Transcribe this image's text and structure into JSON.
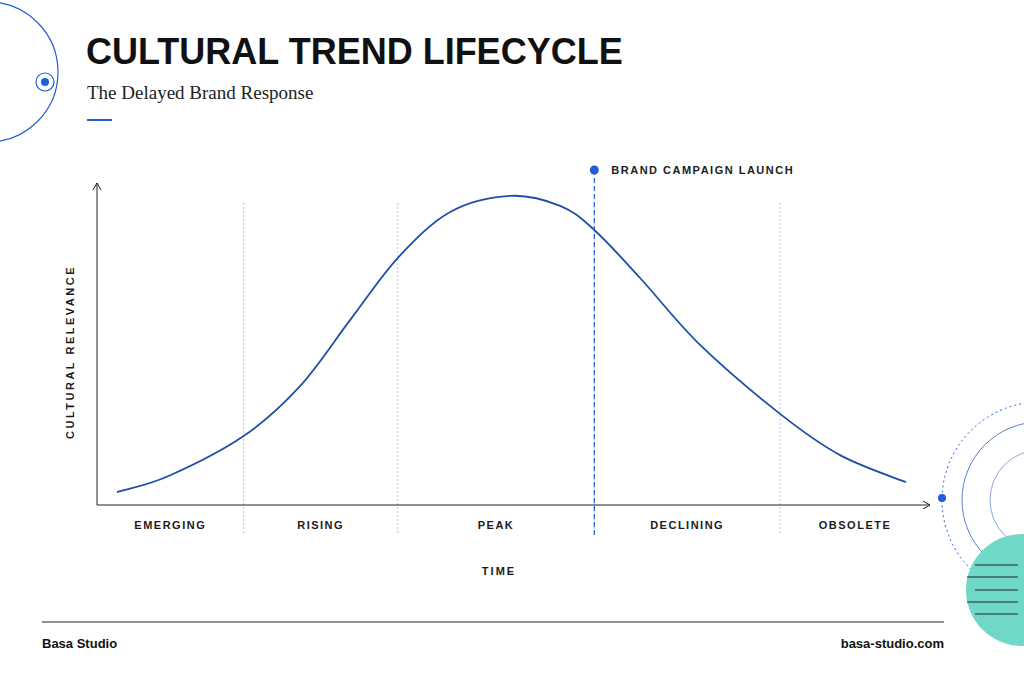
{
  "chart_data": {
    "type": "line",
    "title": "CULTURAL TREND LIFECYCLE",
    "subtitle": "The Delayed Brand Response",
    "y_label": "CULTURAL RELEVANCE",
    "x_label": "TIME",
    "color": "#1f4fa8",
    "xlim": [
      0,
      100
    ],
    "ylim": [
      0,
      100
    ],
    "tick_labels": false,
    "x": [
      2.4,
      8.6,
      17.6,
      24.4,
      30.4,
      36.1,
      42.4,
      49.6,
      55.6,
      59.7,
      65.2,
      72.4,
      82.0,
      89.2,
      97.1
    ],
    "values": [
      4.0,
      9.0,
      21.4,
      37.0,
      57.5,
      76.7,
      91.0,
      96.0,
      92.9,
      85.4,
      70.5,
      49.7,
      28.3,
      15.5,
      7.1
    ],
    "phases": [
      "EMERGING",
      "RISING",
      "PEAK",
      "DECLINING",
      "OBSOLETE"
    ],
    "phase_edges": [
      0,
      17.6,
      36.1,
      59.7,
      82.0,
      100
    ],
    "annotations": [
      {
        "text": "BRAND CAMPAIGN LAUNCH",
        "x": 59.7
      }
    ]
  },
  "footer": {
    "left": "Basa Studio",
    "right": "basa-studio.com"
  }
}
